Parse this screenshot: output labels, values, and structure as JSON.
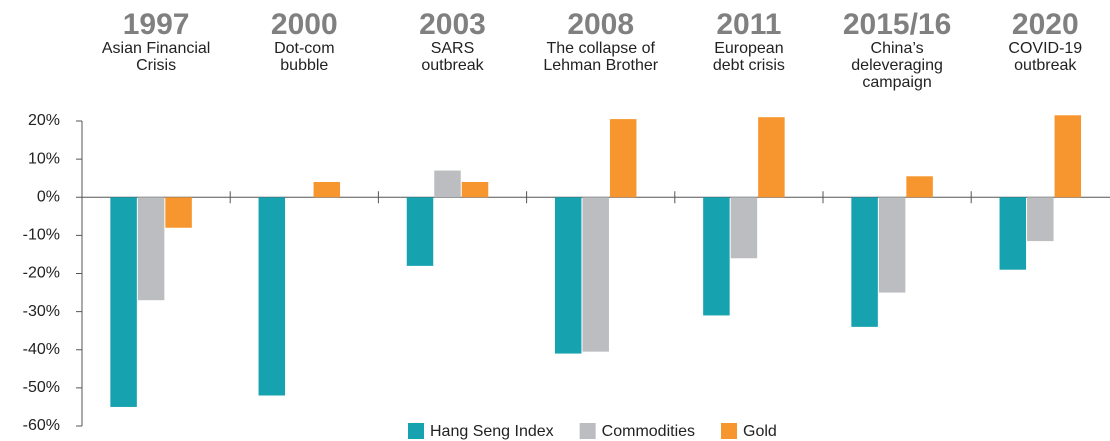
{
  "chart_data": {
    "type": "bar",
    "categories": [
      "1997",
      "2000",
      "2003",
      "2008",
      "2011",
      "2015/16",
      "2020"
    ],
    "descriptions": [
      [
        "Asian Financial",
        "Crisis"
      ],
      [
        "Dot-com",
        "bubble"
      ],
      [
        "SARS",
        "outbreak"
      ],
      [
        "The collapse of",
        "Lehman Brother"
      ],
      [
        "European",
        "debt crisis"
      ],
      [
        "China’s",
        "deleveraging",
        "campaign"
      ],
      [
        "COVID-19",
        "outbreak"
      ]
    ],
    "series": [
      {
        "name": "Hang Seng Index",
        "color": "#17a2b0",
        "values": [
          -55,
          -52,
          -18,
          -41,
          -31,
          -34,
          -19
        ]
      },
      {
        "name": "Commodities",
        "color": "#bcbdc0",
        "values": [
          -27,
          null,
          7,
          -40.5,
          -16,
          -25,
          -11.5
        ]
      },
      {
        "name": "Gold",
        "color": "#f7962f",
        "values": [
          -8,
          4,
          4,
          20.5,
          21,
          5.5,
          21.5
        ]
      }
    ],
    "ylim": [
      -60,
      20
    ],
    "yticks": [
      {
        "value": -60,
        "label": "-60%"
      },
      {
        "value": -50,
        "label": "-50%"
      },
      {
        "value": -40,
        "label": "-40%"
      },
      {
        "value": -30,
        "label": "-30%"
      },
      {
        "value": -20,
        "label": "-20%"
      },
      {
        "value": -10,
        "label": "-10%"
      },
      {
        "value": 0,
        "label": "0%"
      },
      {
        "value": 10,
        "label": "10%"
      },
      {
        "value": 20,
        "label": "20%"
      }
    ],
    "legend": "bottom"
  }
}
